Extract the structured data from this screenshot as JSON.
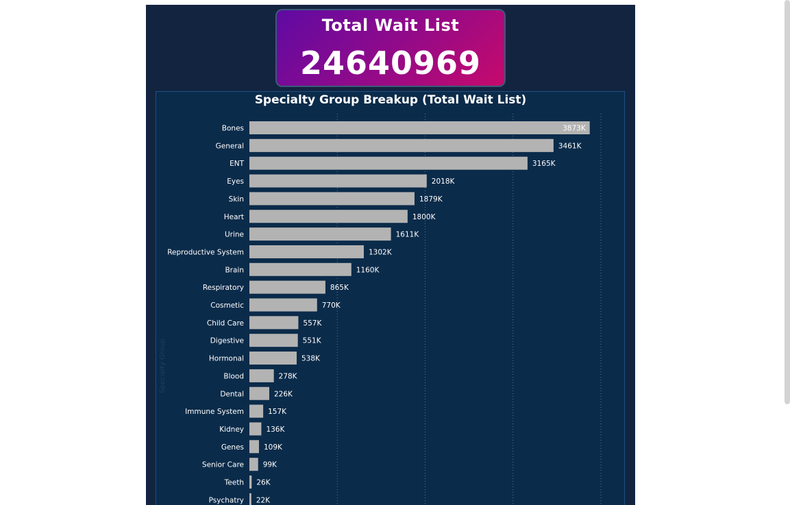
{
  "kpi": {
    "title": "Total Wait List",
    "value": "24640969"
  },
  "colors": {
    "page_bg": "#132440",
    "panel_bg": "#0b2b4a",
    "bar": "#b3b3b3",
    "text": "#ffffff"
  },
  "chart_data": {
    "type": "bar",
    "orientation": "horizontal",
    "title": "Specialty Group Breakup (Total Wait List)",
    "ylabel": "Specialty Group",
    "xlabel": "",
    "xlim": [
      0,
      4000
    ],
    "gridlines": "vertical dotted",
    "categories": [
      "Bones",
      "General",
      "ENT",
      "Eyes",
      "Skin",
      "Heart",
      "Urine",
      "Reproductive System",
      "Brain",
      "Respiratory",
      "Cosmetic",
      "Child Care",
      "Digestive",
      "Hormonal",
      "Blood",
      "Dental",
      "Immune System",
      "Kidney",
      "Genes",
      "Senior Care",
      "Teeth",
      "Psychatry"
    ],
    "values": [
      3873,
      3461,
      3165,
      2018,
      1879,
      1800,
      1611,
      1302,
      1160,
      865,
      770,
      557,
      551,
      538,
      278,
      226,
      157,
      136,
      109,
      99,
      26,
      22
    ],
    "labels": [
      "3873K",
      "3461K",
      "3165K",
      "2018K",
      "1879K",
      "1800K",
      "1611K",
      "1302K",
      "1160K",
      "865K",
      "770K",
      "557K",
      "551K",
      "538K",
      "278K",
      "226K",
      "157K",
      "136K",
      "109K",
      "99K",
      "26K",
      "22K"
    ]
  }
}
